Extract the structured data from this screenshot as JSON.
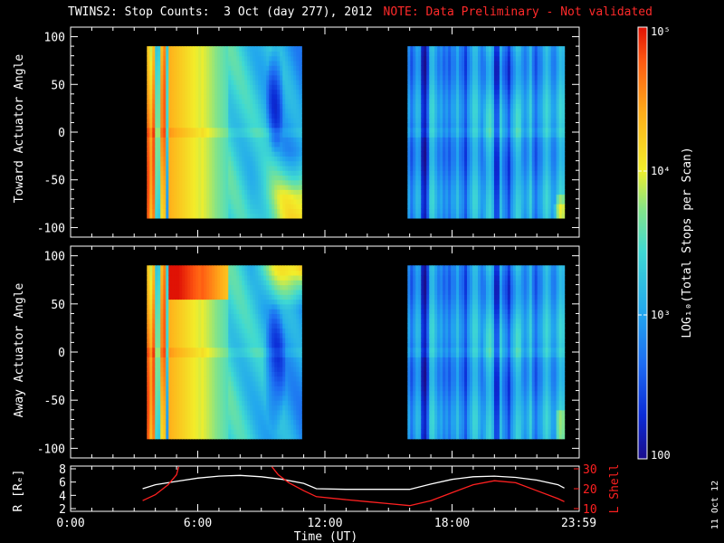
{
  "header": {
    "title": "TWINS2: Stop Counts:  3 Oct (day 277), 2012",
    "note": "NOTE: Data Preliminary - Not validated"
  },
  "colors": {
    "note": "#ff2a2a",
    "frame": "#ffffff",
    "rline": "#ffffff",
    "lshell": "#ff2020",
    "background": "#000000"
  },
  "chart_data": [
    {
      "type": "heatmap",
      "ylabel": "Toward Actuator Angle",
      "ylim": [
        -110,
        110
      ],
      "yticks": [
        -100,
        -50,
        0,
        50,
        100
      ],
      "xlim": [
        0,
        24
      ],
      "data_blocks": [
        {
          "t_start": 3.6,
          "t_end": 10.9,
          "angle_min": -90,
          "angle_max": 90
        },
        {
          "t_start": 15.9,
          "t_end": 23.3,
          "angle_min": -90,
          "angle_max": 90
        }
      ],
      "colorscale": "rainbow",
      "log_count_range": [
        2,
        5
      ]
    },
    {
      "type": "heatmap",
      "ylabel": "Away Actuator Angle",
      "ylim": [
        -110,
        110
      ],
      "yticks": [
        -100,
        -50,
        0,
        50,
        100
      ],
      "xlim": [
        0,
        24
      ],
      "data_blocks": [
        {
          "t_start": 3.6,
          "t_end": 10.9,
          "angle_min": -90,
          "angle_max": 90
        },
        {
          "t_start": 15.9,
          "t_end": 23.3,
          "angle_min": -90,
          "angle_max": 90
        }
      ],
      "colorscale": "rainbow",
      "log_count_range": [
        2,
        5
      ]
    },
    {
      "type": "line",
      "ylabel": "R [Rₑ]",
      "y2label": "L Shell",
      "xlabel": "Time (UT)",
      "xlim": [
        0,
        24
      ],
      "ylim": [
        2,
        8
      ],
      "yticks": [
        2,
        4,
        6,
        8
      ],
      "y2lim": [
        10,
        30
      ],
      "y2ticks": [
        10,
        20,
        30
      ],
      "xtick_labels": [
        {
          "t": 0,
          "label": "0:00"
        },
        {
          "t": 6,
          "label": "6:00"
        },
        {
          "t": 12,
          "label": "12:00"
        },
        {
          "t": 18,
          "label": "18:00"
        },
        {
          "t": 23.98,
          "label": "23:59"
        }
      ],
      "series": [
        {
          "name": "R",
          "x": [
            3.4,
            4.0,
            5.0,
            6.0,
            7.0,
            8.0,
            9.0,
            10.0,
            11.0,
            11.6,
            13.0,
            14.0,
            15.0,
            16.0,
            17.0,
            18.0,
            19.0,
            20.0,
            21.0,
            22.0,
            23.0,
            23.3
          ],
          "y": [
            5.0,
            5.6,
            6.1,
            6.6,
            6.9,
            7.0,
            6.8,
            6.4,
            5.8,
            5.0,
            4.9,
            4.9,
            4.9,
            4.9,
            5.7,
            6.4,
            6.8,
            6.9,
            6.7,
            6.3,
            5.6,
            5.1
          ]
        },
        {
          "name": "L Shell",
          "x": [
            3.4,
            4.0,
            4.6,
            5.0,
            5.1
          ],
          "y": [
            14.0,
            17.0,
            22.0,
            27.0,
            31.0
          ]
        },
        {
          "name": "L Shell",
          "x": [
            9.5,
            9.8,
            10.3,
            11.0,
            11.6,
            13.0,
            14.0,
            15.0,
            16.0,
            17.0,
            18.0,
            19.0,
            20.0,
            21.0,
            22.0,
            23.0,
            23.3
          ],
          "y": [
            31.0,
            27.0,
            23.0,
            19.0,
            16.0,
            14.5,
            13.5,
            12.5,
            11.5,
            14.0,
            18.0,
            22.0,
            24.0,
            23.0,
            19.0,
            15.0,
            13.5
          ]
        }
      ]
    },
    {
      "type": "colorbar",
      "label": "LOG₁₀(Total Stops per Scan)",
      "ticks": [
        {
          "value": 100,
          "label": "100",
          "log": 2
        },
        {
          "value": 1000,
          "label": "10³",
          "log": 3
        },
        {
          "value": 10000,
          "label": "10⁴",
          "log": 4
        },
        {
          "value": 100000,
          "label": "10⁵",
          "log": 5
        }
      ]
    }
  ],
  "footer": {
    "date_stamp": "11 Oct 12"
  }
}
